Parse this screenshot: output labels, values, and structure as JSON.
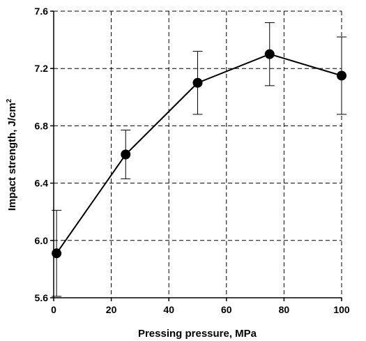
{
  "chart_data": {
    "type": "line",
    "title": "",
    "xlabel": "Pressing pressure, MPa",
    "ylabel_main": "Impact strength, J/cm",
    "ylabel_sup": "2",
    "xlim": [
      0,
      100
    ],
    "ylim": [
      5.6,
      7.6
    ],
    "x_ticks": [
      0,
      20,
      40,
      60,
      80,
      100
    ],
    "x_tick_labels": [
      "0",
      "20",
      "40",
      "60",
      "80",
      "100"
    ],
    "y_ticks": [
      5.6,
      6.0,
      6.4,
      6.8,
      7.2,
      7.6
    ],
    "y_tick_labels": [
      "5.6",
      "6.0",
      "6.4",
      "6.8",
      "7.2",
      "7.6"
    ],
    "grid": true,
    "grid_style": "dashed",
    "series": [
      {
        "x": [
          1,
          25,
          50,
          75,
          100
        ],
        "y": [
          5.91,
          6.6,
          7.1,
          7.3,
          7.15
        ],
        "err_low": [
          5.61,
          6.43,
          6.88,
          7.08,
          6.88
        ],
        "err_high": [
          6.21,
          6.77,
          7.32,
          7.52,
          7.42
        ],
        "color": "#000000"
      }
    ]
  }
}
